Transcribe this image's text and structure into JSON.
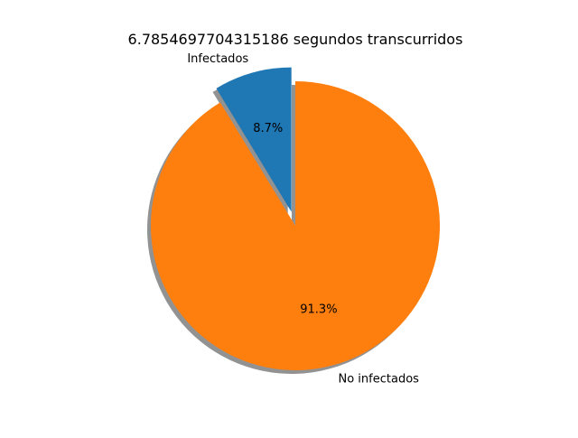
{
  "chart_data": {
    "type": "pie",
    "title": "6.7854697704315186 segundos transcurridos",
    "slices": [
      {
        "label": "Infectados",
        "value": 8.7,
        "pct_label": "8.7%",
        "color": "#1f77b4",
        "exploded": true
      },
      {
        "label": "No infectados",
        "value": 91.3,
        "pct_label": "91.3%",
        "color": "#ff7f0e",
        "exploded": false
      }
    ],
    "start_angle_deg": 90,
    "direction": "counterclockwise",
    "shadow": true,
    "shadow_color": "#7f7f7f"
  }
}
